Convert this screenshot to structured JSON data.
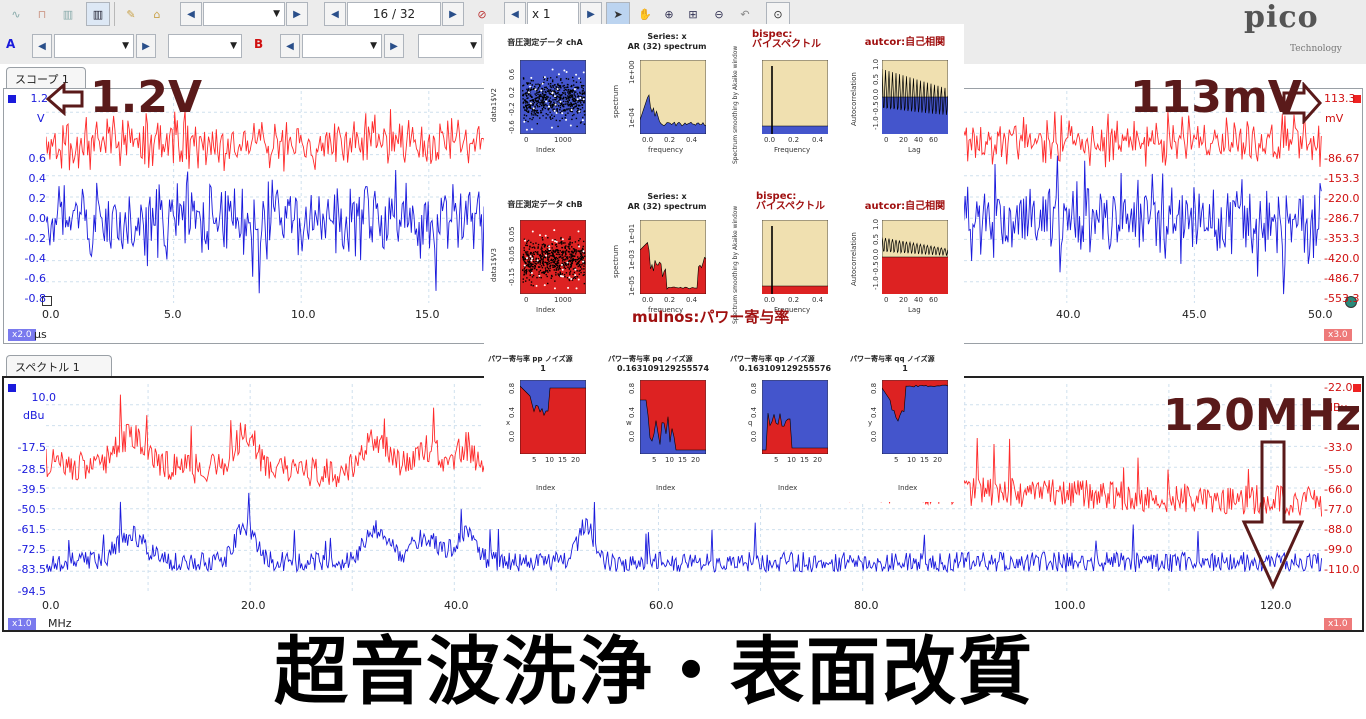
{
  "toolbar": {
    "page_indicator": "16 / 32",
    "zoom_value": "x 1",
    "logo": "pico",
    "logo_sub": "Technology",
    "channel_a": "A",
    "channel_b": "B",
    "icons": [
      "scope-mode-icon",
      "persistence-icon",
      "spectrum-icon",
      "xy-icon",
      "probe-icon",
      "home-icon",
      "prev-icon",
      "next-icon",
      "trigger-icon",
      "pointer-icon",
      "hand-icon",
      "zoom-in-icon",
      "zoom-box-icon",
      "zoom-out-icon",
      "undo-zoom-icon",
      "magnify-icon"
    ]
  },
  "scope": {
    "tab_label": "スコープ 1",
    "left_unit": "V",
    "right_unit": "mV",
    "left_ticks": [
      "1.2",
      "0.6",
      "0.4",
      "0.2",
      "0.0",
      "-0.2",
      "-0.4",
      "-0.6",
      "-0.8"
    ],
    "right_ticks": [
      "113.3",
      "-86.67",
      "-153.3",
      "-220.0",
      "-286.7",
      "-353.3",
      "-420.0",
      "-486.7",
      "-553.3"
    ],
    "x_ticks": [
      "0.0",
      "5.0",
      "10.0",
      "15.0",
      "40.0",
      "45.0",
      "50.0"
    ],
    "x_unit": "μs",
    "left_badge": "x2.0",
    "right_badge": "x3.0",
    "annotation_left": "1.2V",
    "annotation_right": "113mV"
  },
  "spectrum": {
    "tab_label": "スペクトル 1",
    "left_unit": "dBu",
    "right_unit": "dBu",
    "left_ticks": [
      "10.0",
      "-17.5",
      "-28.5",
      "-39.5",
      "-50.5",
      "-61.5",
      "-72.5",
      "-83.5",
      "-94.5"
    ],
    "right_ticks": [
      "-22.0",
      "-33.0",
      "-55.0",
      "-66.0",
      "-77.0",
      "-88.0",
      "-99.0",
      "-110.0"
    ],
    "x_ticks": [
      "0.0",
      "20.0",
      "40.0",
      "60.0",
      "80.0",
      "100.0",
      "120.0"
    ],
    "x_unit": "MHz",
    "left_badge": "x1.0",
    "right_badge": "x1.0",
    "annotation": "120MHz"
  },
  "overlay": {
    "row1": {
      "ts_title": "音圧測定データ chA",
      "ts_ylabel": "data1$V2",
      "ts_xlabel": "Index",
      "ts_xticks": [
        "0",
        "1000"
      ],
      "ts_yticks": [
        "0.6",
        "0.2",
        "-0.2",
        "-0.6"
      ],
      "ar_title": "Series: x\nAR (32) spectrum",
      "ar_ylabel": "spectrum",
      "ar_xlabel": "frequency",
      "ar_yticks": [
        "1e+00",
        "1e-04"
      ],
      "ar_xticks": [
        "0.0",
        "0.2",
        "0.4"
      ],
      "bispec_title": "bispec:\nバイスペクトル",
      "bispec_ylabel": "Spectrum smoothing by Akaike window",
      "bispec_xlabel": "Frequency",
      "bispec_xticks": [
        "0.0",
        "0.2",
        "0.4"
      ],
      "autcor_title": "autcor:自己相関",
      "autcor_ylabel": "Autocorrelation",
      "autcor_xlabel": "Lag",
      "autcor_xticks": [
        "0",
        "20",
        "40",
        "60"
      ],
      "autcor_yticks": [
        "1.0",
        "0.5",
        "0.0",
        "-0.5",
        "-1.0"
      ]
    },
    "row2": {
      "ts_title": "音圧測定データ chB",
      "ts_ylabel": "data1$V3",
      "ts_xlabel": "Index",
      "ts_xticks": [
        "0",
        "1000"
      ],
      "ts_yticks": [
        "0.05",
        "-0.05",
        "-0.15"
      ],
      "ar_title": "Series: x\nAR (32) spectrum",
      "ar_ylabel": "spectrum",
      "ar_xlabel": "frequency",
      "ar_yticks": [
        "1e-01",
        "1e-03",
        "1e-05"
      ],
      "ar_xticks": [
        "0.0",
        "0.2",
        "0.4"
      ],
      "bispec_title": "bispec:\nバイスペクトル",
      "bispec_ylabel": "Spectrum smoothing by Akaike window",
      "bispec_xlabel": "Frequency",
      "bispec_xticks": [
        "0.0",
        "0.2",
        "0.4"
      ],
      "autcor_title": "autcor:自己相関",
      "autcor_ylabel": "Autocorrelation",
      "autcor_xlabel": "Lag",
      "autcor_xticks": [
        "0",
        "20",
        "40",
        "60"
      ],
      "autcor_yticks": [
        "1.0",
        "0.5",
        "0.0",
        "-0.5",
        "-1.0"
      ]
    },
    "mulnos_title": "mulnos:パワー寄与率",
    "mulnos_panels": [
      {
        "header": "パワー寄与率 pp   ノイズ源",
        "value": "1",
        "ylabel": "x"
      },
      {
        "header": "パワー寄与率 pq   ノイズ源",
        "value": "0.163109129255574",
        "ylabel": "w"
      },
      {
        "header": "パワー寄与率 qp   ノイズ源",
        "value": "0.163109129255576",
        "ylabel": "q"
      },
      {
        "header": "パワー寄与率 qq   ノイズ源",
        "value": "1",
        "ylabel": "y"
      }
    ],
    "mulnos_xlabel": "Index",
    "mulnos_xticks": [
      "5",
      "10",
      "15",
      "20"
    ],
    "mulnos_yticks": [
      "0.8",
      "0.4",
      "0.0"
    ]
  },
  "footer_title": "超音波洗浄・表面改質",
  "colors": {
    "red": "#ff2a2a",
    "blue": "#1a1adc",
    "ann": "#5a1a1a",
    "panel_fill": "#f0e0b0",
    "mini_blue": "#4455cc",
    "mini_red": "#dd2222"
  }
}
